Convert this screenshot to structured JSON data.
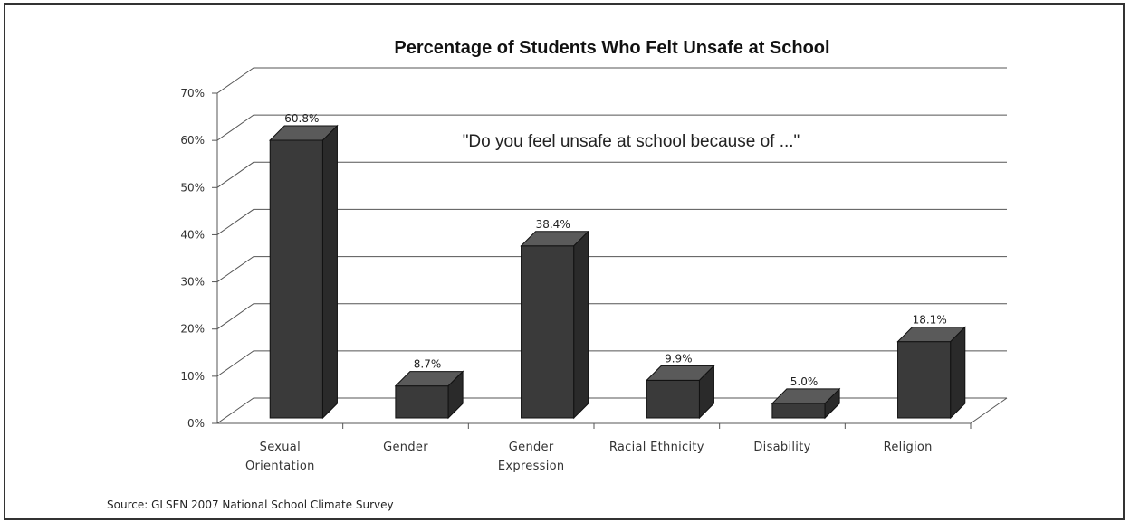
{
  "chart_data": {
    "type": "bar",
    "title": "Percentage of Students Who Felt Unsafe at School",
    "subtitle": "\"Do you feel unsafe at school because of ...\"",
    "categories": [
      "Sexual Orientation",
      "Gender",
      "Gender Expression",
      "Racial Ethnicity",
      "Disability",
      "Religion"
    ],
    "category_lines": [
      [
        "Sexual",
        "Orientation"
      ],
      [
        "Gender"
      ],
      [
        "Gender",
        "Expression"
      ],
      [
        "Racial Ethnicity"
      ],
      [
        "Disability"
      ],
      [
        "Religion"
      ]
    ],
    "values": [
      60.8,
      8.7,
      38.4,
      9.9,
      5.0,
      18.1
    ],
    "value_labels": [
      "60.8%",
      "8.7%",
      "38.4%",
      "9.9%",
      "5.0%",
      "18.1%"
    ],
    "ylim": [
      0,
      70
    ],
    "yticks": [
      "0%",
      "10%",
      "20%",
      "30%",
      "40%",
      "50%",
      "60%",
      "70%"
    ],
    "xlabel": "",
    "ylabel": "",
    "grid": true,
    "style": "3d-column",
    "bar_color": "#3a3a3a",
    "source": "Source: GLSEN 2007 National School Climate Survey"
  }
}
